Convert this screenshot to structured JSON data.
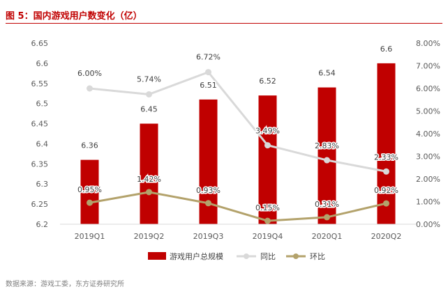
{
  "header": {
    "title": "图 5：国内游戏用户数变化（亿）"
  },
  "source": "数据来源：游戏工委，东方证券研究所",
  "colors": {
    "bar": "#c00000",
    "yoy": "#d9d9d9",
    "qoq": "#b3a26b",
    "title": "#c00000"
  },
  "chart_data": {
    "type": "bar",
    "categories": [
      "2019Q1",
      "2019Q2",
      "2019Q3",
      "2019Q4",
      "2020Q1",
      "2020Q2"
    ],
    "series": [
      {
        "name": "游戏用户总规模",
        "type": "bar",
        "axis": "left",
        "values": [
          6.36,
          6.45,
          6.51,
          6.52,
          6.54,
          6.6
        ],
        "labels": [
          "6.36",
          "6.45",
          "6.51",
          "6.52",
          "6.54",
          "6.6"
        ]
      },
      {
        "name": "同比",
        "type": "line",
        "axis": "right",
        "values": [
          6.0,
          5.74,
          6.72,
          3.49,
          2.83,
          2.33
        ],
        "labels": [
          "6.00%",
          "5.74%",
          "6.72%",
          "3.49%",
          "2.83%",
          "2.33%"
        ]
      },
      {
        "name": "环比",
        "type": "line",
        "axis": "right",
        "values": [
          0.95,
          1.42,
          0.93,
          0.15,
          0.31,
          0.92
        ],
        "labels": [
          "0.95%",
          "1.42%",
          "0.93%",
          "0.15%",
          "0.31%",
          "0.92%"
        ]
      }
    ],
    "y_left": {
      "min": 6.2,
      "max": 6.65,
      "ticks": [
        "6.2",
        "6.25",
        "6.3",
        "6.35",
        "6.4",
        "6.45",
        "6.5",
        "6.55",
        "6.6",
        "6.65"
      ]
    },
    "y_right": {
      "min": 0,
      "max": 8,
      "unit": "%",
      "ticks": [
        "0.00%",
        "1.00%",
        "2.00%",
        "3.00%",
        "4.00%",
        "5.00%",
        "6.00%",
        "7.00%",
        "8.00%"
      ]
    },
    "grid": false,
    "legend_position": "bottom"
  }
}
